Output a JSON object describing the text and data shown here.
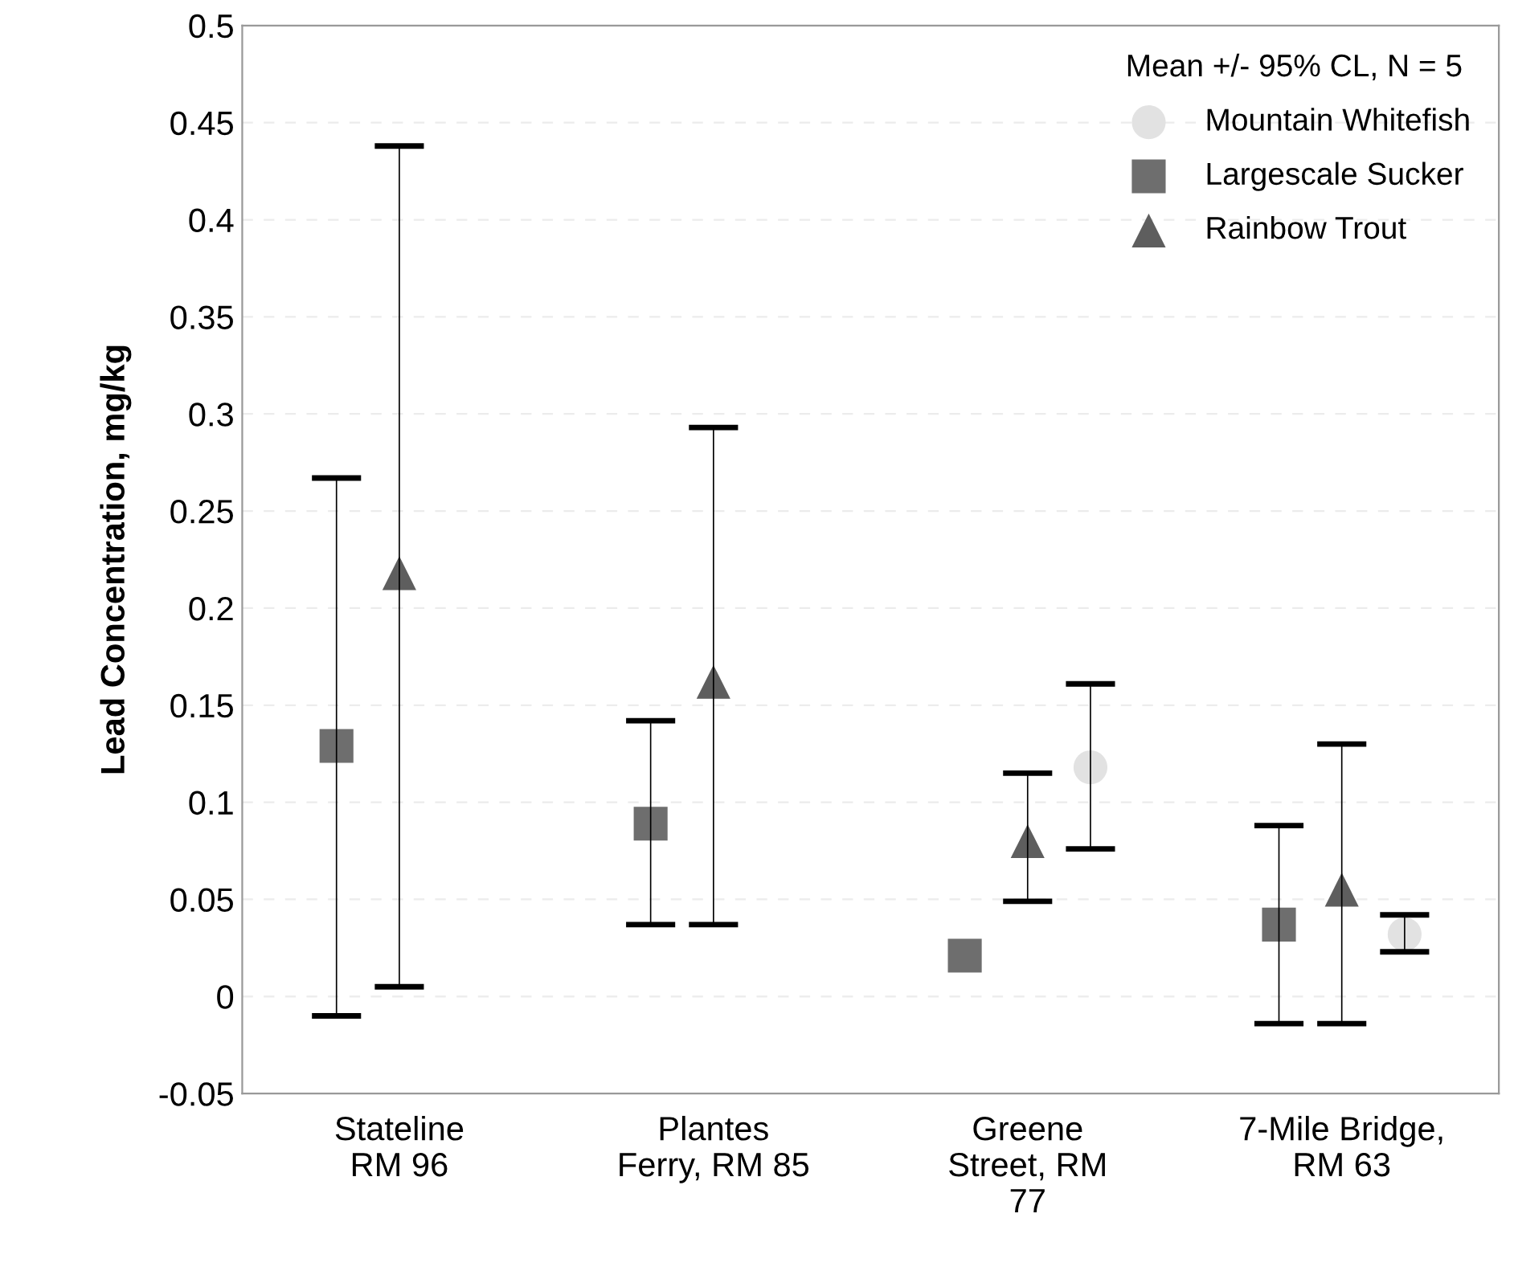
{
  "chart_data": {
    "type": "scatter",
    "ylabel": "Lead Concentration, mg/kg",
    "legend_title": "Mean +/- 95% CL, N = 5",
    "categories": [
      "Stateline\nRM 96",
      "Plantes\nFerry, RM 85",
      "Greene\nStreet, RM\n77",
      "7-Mile Bridge,\nRM 63"
    ],
    "series": [
      {
        "name": "Mountain Whitefish",
        "color": "#e2e2e2",
        "marker": "circle",
        "values": [
          null,
          null,
          0.118,
          0.032
        ],
        "errors": [
          null,
          null,
          [
            0.076,
            0.161
          ],
          [
            0.023,
            0.042
          ]
        ]
      },
      {
        "name": "Largescale Sucker",
        "color": "#6e6e6e",
        "marker": "square",
        "values": [
          0.129,
          0.089,
          0.021,
          0.037
        ],
        "errors": [
          [
            -0.01,
            0.267
          ],
          [
            0.037,
            0.142
          ],
          null,
          [
            -0.014,
            0.088
          ]
        ]
      },
      {
        "name": "Rainbow Trout",
        "color": "#5e5e5e",
        "marker": "triangle",
        "values": [
          0.218,
          0.162,
          0.08,
          0.055
        ],
        "errors": [
          [
            0.005,
            0.438
          ],
          [
            0.037,
            0.293
          ],
          [
            0.049,
            0.115
          ],
          [
            -0.014,
            0.13
          ]
        ]
      }
    ],
    "ylim": [
      -0.05,
      0.5
    ],
    "yticks": [
      -0.05,
      0,
      0.05,
      0.1,
      0.15,
      0.2,
      0.25,
      0.3,
      0.35,
      0.4,
      0.45,
      0.5
    ],
    "grid": "y",
    "legend": "top right"
  }
}
